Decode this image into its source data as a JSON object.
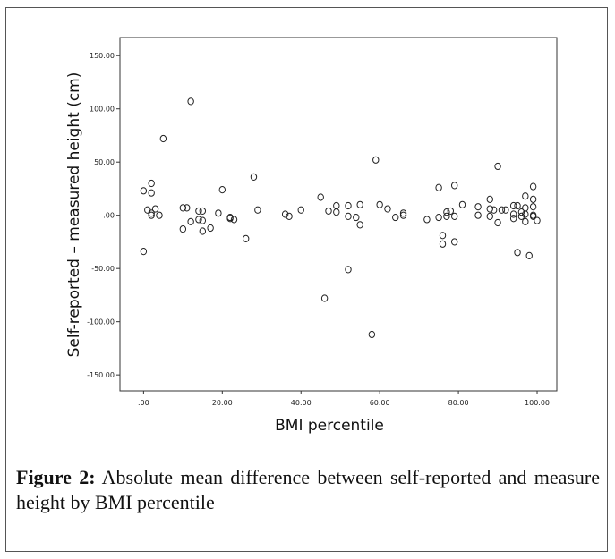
{
  "chart_data": {
    "type": "scatter",
    "xlabel": "BMI percentile",
    "ylabel": "Self-reported – measured height (cm)",
    "xlim": [
      -6,
      105
    ],
    "ylim": [
      -165,
      167
    ],
    "x_ticks": [
      0,
      20,
      40,
      60,
      80,
      100
    ],
    "x_tick_labels": [
      ".00",
      "20.00",
      "40.00",
      "60.00",
      "80.00",
      "100.00"
    ],
    "y_ticks": [
      150,
      100,
      50,
      0,
      -50,
      -100,
      -150
    ],
    "y_tick_labels": [
      "150.00",
      "100.00",
      "50.00",
      ".00",
      "-50.00",
      "-100.00",
      "-150.00"
    ],
    "grid": false,
    "points": [
      [
        0,
        23
      ],
      [
        1,
        5
      ],
      [
        2,
        30
      ],
      [
        2,
        21
      ],
      [
        2,
        2
      ],
      [
        2,
        0
      ],
      [
        3,
        6
      ],
      [
        4,
        0
      ],
      [
        0,
        -34
      ],
      [
        5,
        72
      ],
      [
        10,
        7
      ],
      [
        11,
        7
      ],
      [
        10,
        -13
      ],
      [
        12,
        -6
      ],
      [
        12,
        107
      ],
      [
        14,
        4
      ],
      [
        15,
        4
      ],
      [
        14,
        -4
      ],
      [
        15,
        -5
      ],
      [
        15,
        -15
      ],
      [
        17,
        -12
      ],
      [
        19,
        2
      ],
      [
        20,
        24
      ],
      [
        22,
        -3
      ],
      [
        22,
        -2
      ],
      [
        23,
        -4
      ],
      [
        26,
        -22
      ],
      [
        28,
        36
      ],
      [
        29,
        5
      ],
      [
        36,
        1
      ],
      [
        37,
        -1
      ],
      [
        40,
        5
      ],
      [
        45,
        17
      ],
      [
        46,
        -78
      ],
      [
        47,
        4
      ],
      [
        49,
        9
      ],
      [
        49,
        3
      ],
      [
        52,
        9
      ],
      [
        52,
        -1
      ],
      [
        52,
        -51
      ],
      [
        54,
        -2
      ],
      [
        55,
        10
      ],
      [
        55,
        -9
      ],
      [
        58,
        -112
      ],
      [
        59,
        52
      ],
      [
        60,
        10
      ],
      [
        62,
        6
      ],
      [
        64,
        -2
      ],
      [
        66,
        2
      ],
      [
        66,
        0
      ],
      [
        72,
        -4
      ],
      [
        75,
        26
      ],
      [
        75,
        -2
      ],
      [
        76,
        -19
      ],
      [
        76,
        -27
      ],
      [
        77,
        -1
      ],
      [
        77,
        3
      ],
      [
        78,
        4
      ],
      [
        79,
        28
      ],
      [
        79,
        -1
      ],
      [
        79,
        -25
      ],
      [
        81,
        10
      ],
      [
        85,
        8
      ],
      [
        85,
        0
      ],
      [
        88,
        15
      ],
      [
        88,
        6
      ],
      [
        88,
        -1
      ],
      [
        89,
        5
      ],
      [
        90,
        46
      ],
      [
        90,
        -7
      ],
      [
        91,
        5
      ],
      [
        92,
        5
      ],
      [
        94,
        9
      ],
      [
        94,
        1
      ],
      [
        94,
        -3
      ],
      [
        95,
        9
      ],
      [
        95,
        -35
      ],
      [
        96,
        3
      ],
      [
        96,
        -1
      ],
      [
        97,
        18
      ],
      [
        97,
        7
      ],
      [
        97,
        1
      ],
      [
        97,
        -6
      ],
      [
        98,
        -38
      ],
      [
        99,
        27
      ],
      [
        99,
        15
      ],
      [
        99,
        8
      ],
      [
        99,
        0
      ],
      [
        99,
        -1
      ],
      [
        100,
        -5
      ]
    ]
  },
  "caption": {
    "label": "Figure 2:",
    "text": " Absolute mean difference between self-reported and measure height by BMI percentile"
  }
}
